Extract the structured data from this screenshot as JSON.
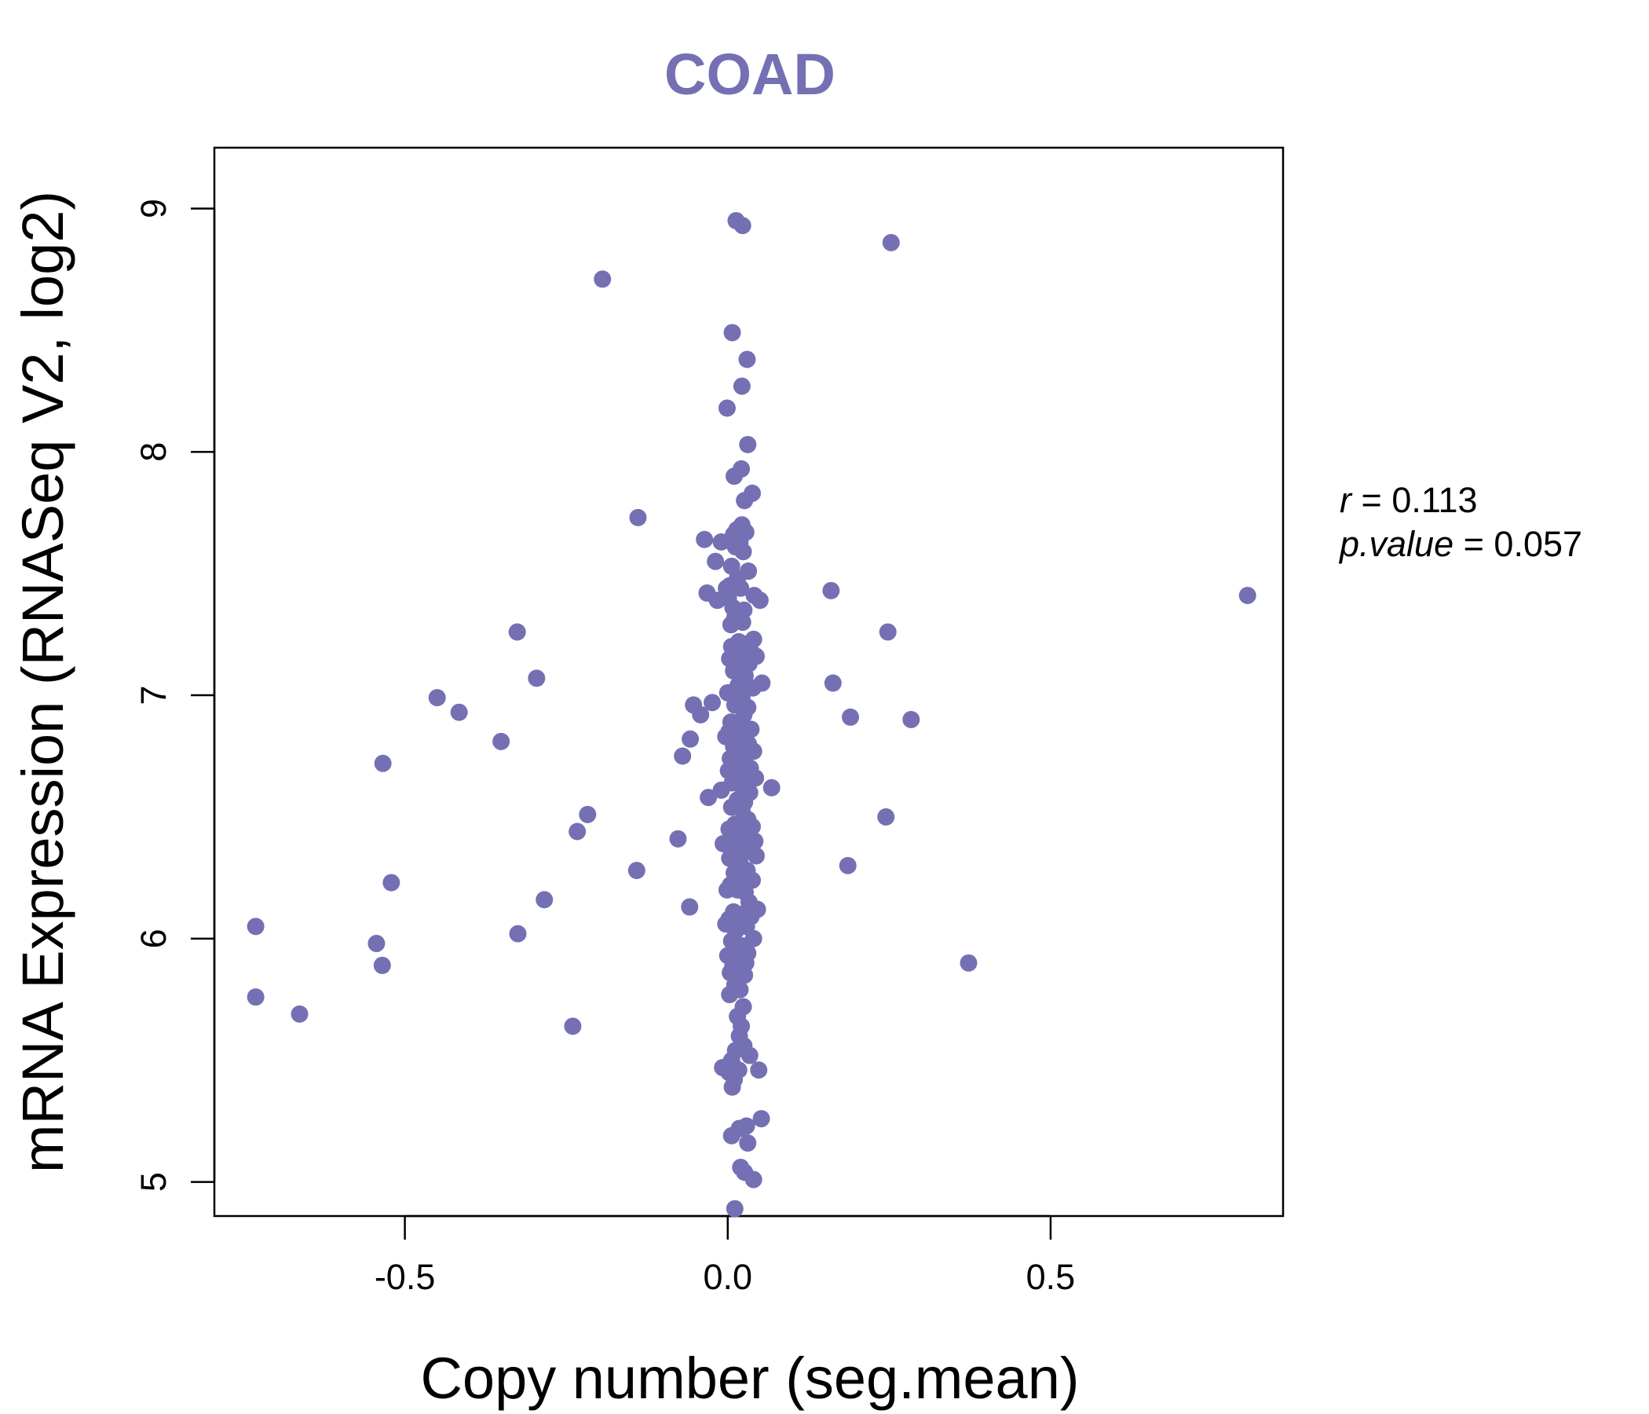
{
  "chart_data": {
    "type": "scatter",
    "title": "COAD",
    "xlabel": "Copy number (seg.mean)",
    "ylabel": "mRNA Expression (RNASeq V2, log2)",
    "xlim": [
      -0.795,
      0.86
    ],
    "ylim": [
      4.86,
      9.25
    ],
    "x_ticks": [
      -0.5,
      0.0,
      0.5
    ],
    "x_tick_labels": [
      "-0.5",
      "0.0",
      "0.5"
    ],
    "y_ticks": [
      5,
      6,
      7,
      8,
      9
    ],
    "y_tick_labels": [
      "5",
      "6",
      "7",
      "8",
      "9"
    ],
    "grid": false,
    "legend": "none",
    "colors": {
      "points": "#7570b3",
      "title": "#7570b3",
      "axes": "#000000"
    },
    "stats": {
      "r_label": "r",
      "r_value": "0.113",
      "p_label": "p.value",
      "p_value": "0.057"
    },
    "points": [
      [
        0.013,
        8.95
      ],
      [
        0.023,
        8.93
      ],
      [
        0.253,
        8.86
      ],
      [
        -0.194,
        8.71
      ],
      [
        0.007,
        8.49
      ],
      [
        0.03,
        8.38
      ],
      [
        0.022,
        8.27
      ],
      [
        -0.001,
        8.18
      ],
      [
        0.031,
        8.03
      ],
      [
        0.021,
        7.93
      ],
      [
        0.01,
        7.9
      ],
      [
        0.038,
        7.83
      ],
      [
        0.026,
        7.8
      ],
      [
        -0.139,
        7.73
      ],
      [
        0.022,
        7.7
      ],
      [
        0.014,
        7.68
      ],
      [
        0.028,
        7.67
      ],
      [
        0.009,
        7.66
      ],
      [
        -0.036,
        7.64
      ],
      [
        0.019,
        7.63
      ],
      [
        -0.01,
        7.63
      ],
      [
        0.012,
        7.61
      ],
      [
        0.024,
        7.59
      ],
      [
        -0.019,
        7.55
      ],
      [
        0.006,
        7.53
      ],
      [
        0.032,
        7.51
      ],
      [
        0.015,
        7.48
      ],
      [
        0.003,
        7.45
      ],
      [
        0.02,
        7.44
      ],
      [
        -0.002,
        7.44
      ],
      [
        0.16,
        7.43
      ],
      [
        -0.032,
        7.42
      ],
      [
        0.041,
        7.41
      ],
      [
        0.05,
        7.39
      ],
      [
        0.001,
        7.4
      ],
      [
        -0.016,
        7.39
      ],
      [
        0.805,
        7.41
      ],
      [
        0.008,
        7.36
      ],
      [
        0.025,
        7.35
      ],
      [
        0.011,
        7.32
      ],
      [
        0.023,
        7.3
      ],
      [
        0.005,
        7.29
      ],
      [
        -0.326,
        7.26
      ],
      [
        0.248,
        7.26
      ],
      [
        0.04,
        7.23
      ],
      [
        0.017,
        7.22
      ],
      [
        0.028,
        7.21
      ],
      [
        0.006,
        7.2
      ],
      [
        0.036,
        7.18
      ],
      [
        0.012,
        7.17
      ],
      [
        0.044,
        7.16
      ],
      [
        0.003,
        7.15
      ],
      [
        0.021,
        7.14
      ],
      [
        0.033,
        7.13
      ],
      [
        -0.296,
        7.07
      ],
      [
        0.009,
        7.1
      ],
      [
        0.027,
        7.08
      ],
      [
        0.163,
        7.05
      ],
      [
        0.053,
        7.05
      ],
      [
        0.016,
        7.04
      ],
      [
        0.039,
        7.03
      ],
      [
        0.0,
        7.01
      ],
      [
        -0.45,
        6.99
      ],
      [
        0.022,
        6.99
      ],
      [
        -0.024,
        6.97
      ],
      [
        -0.053,
        6.96
      ],
      [
        0.011,
        6.96
      ],
      [
        0.031,
        6.95
      ],
      [
        -0.416,
        6.93
      ],
      [
        -0.042,
        6.92
      ],
      [
        0.025,
        6.92
      ],
      [
        0.19,
        6.91
      ],
      [
        0.284,
        6.9
      ],
      [
        0.005,
        6.89
      ],
      [
        0.018,
        6.88
      ],
      [
        0.036,
        6.86
      ],
      [
        0.002,
        6.85
      ],
      [
        0.028,
        6.84
      ],
      [
        -0.003,
        6.83
      ],
      [
        0.015,
        6.82
      ],
      [
        -0.058,
        6.82
      ],
      [
        -0.351,
        6.81
      ],
      [
        0.032,
        6.8
      ],
      [
        0.009,
        6.79
      ],
      [
        0.02,
        6.78
      ],
      [
        0.04,
        6.77
      ],
      [
        -0.07,
        6.75
      ],
      [
        0.004,
        6.74
      ],
      [
        0.026,
        6.73
      ],
      [
        -0.534,
        6.72
      ],
      [
        0.012,
        6.71
      ],
      [
        0.035,
        6.7
      ],
      [
        0.001,
        6.69
      ],
      [
        0.018,
        6.68
      ],
      [
        0.029,
        6.67
      ],
      [
        0.043,
        6.66
      ],
      [
        0.007,
        6.64
      ],
      [
        0.021,
        6.63
      ],
      [
        0.068,
        6.62
      ],
      [
        -0.01,
        6.61
      ],
      [
        0.034,
        6.6
      ],
      [
        -0.03,
        6.58
      ],
      [
        0.015,
        6.57
      ],
      [
        0.026,
        6.56
      ],
      [
        0.006,
        6.54
      ],
      [
        0.022,
        6.53
      ],
      [
        -0.217,
        6.51
      ],
      [
        0.245,
        6.5
      ],
      [
        0.031,
        6.49
      ],
      [
        0.011,
        6.47
      ],
      [
        0.038,
        6.46
      ],
      [
        0.002,
        6.45
      ],
      [
        -0.233,
        6.44
      ],
      [
        0.024,
        6.43
      ],
      [
        0.016,
        6.42
      ],
      [
        -0.077,
        6.41
      ],
      [
        0.042,
        6.4
      ],
      [
        0.008,
        6.39
      ],
      [
        -0.007,
        6.39
      ],
      [
        0.027,
        6.37
      ],
      [
        0.033,
        6.36
      ],
      [
        0.013,
        6.35
      ],
      [
        0.044,
        6.34
      ],
      [
        0.003,
        6.33
      ],
      [
        0.019,
        6.31
      ],
      [
        0.186,
        6.3
      ],
      [
        -0.141,
        6.28
      ],
      [
        0.03,
        6.28
      ],
      [
        0.01,
        6.27
      ],
      [
        0.038,
        6.24
      ],
      [
        -0.521,
        6.23
      ],
      [
        0.021,
        6.23
      ],
      [
        0.004,
        6.22
      ],
      [
        0.015,
        6.2
      ],
      [
        -0.001,
        6.2
      ],
      [
        0.027,
        6.19
      ],
      [
        -0.284,
        6.16
      ],
      [
        0.033,
        6.15
      ],
      [
        -0.059,
        6.13
      ],
      [
        0.046,
        6.12
      ],
      [
        0.009,
        6.11
      ],
      [
        0.022,
        6.1
      ],
      [
        0.036,
        6.09
      ],
      [
        0.002,
        6.08
      ],
      [
        0.017,
        6.07
      ],
      [
        -0.003,
        6.06
      ],
      [
        -0.731,
        6.05
      ],
      [
        0.029,
        6.05
      ],
      [
        0.012,
        6.03
      ],
      [
        -0.325,
        6.02
      ],
      [
        0.04,
        6.0
      ],
      [
        0.006,
        5.99
      ],
      [
        -0.544,
        5.98
      ],
      [
        0.024,
        5.97
      ],
      [
        0.014,
        5.96
      ],
      [
        0.031,
        5.94
      ],
      [
        0.0,
        5.93
      ],
      [
        0.02,
        5.92
      ],
      [
        -0.535,
        5.89
      ],
      [
        0.373,
        5.9
      ],
      [
        0.028,
        5.9
      ],
      [
        0.008,
        5.89
      ],
      [
        0.016,
        5.87
      ],
      [
        0.004,
        5.86
      ],
      [
        0.026,
        5.85
      ],
      [
        -0.731,
        5.76
      ],
      [
        0.011,
        5.81
      ],
      [
        0.019,
        5.79
      ],
      [
        0.003,
        5.77
      ],
      [
        0.024,
        5.72
      ],
      [
        -0.663,
        5.69
      ],
      [
        0.015,
        5.68
      ],
      [
        0.021,
        5.64
      ],
      [
        -0.24,
        5.64
      ],
      [
        0.018,
        5.6
      ],
      [
        0.025,
        5.56
      ],
      [
        0.012,
        5.54
      ],
      [
        0.034,
        5.52
      ],
      [
        0.006,
        5.5
      ],
      [
        -0.008,
        5.47
      ],
      [
        0.048,
        5.46
      ],
      [
        0.017,
        5.46
      ],
      [
        0.002,
        5.45
      ],
      [
        0.01,
        5.42
      ],
      [
        0.007,
        5.39
      ],
      [
        0.052,
        5.26
      ],
      [
        0.029,
        5.23
      ],
      [
        0.018,
        5.22
      ],
      [
        0.006,
        5.19
      ],
      [
        0.031,
        5.16
      ],
      [
        0.02,
        5.06
      ],
      [
        0.026,
        5.04
      ],
      [
        0.04,
        5.01
      ],
      [
        0.011,
        4.89
      ]
    ]
  }
}
